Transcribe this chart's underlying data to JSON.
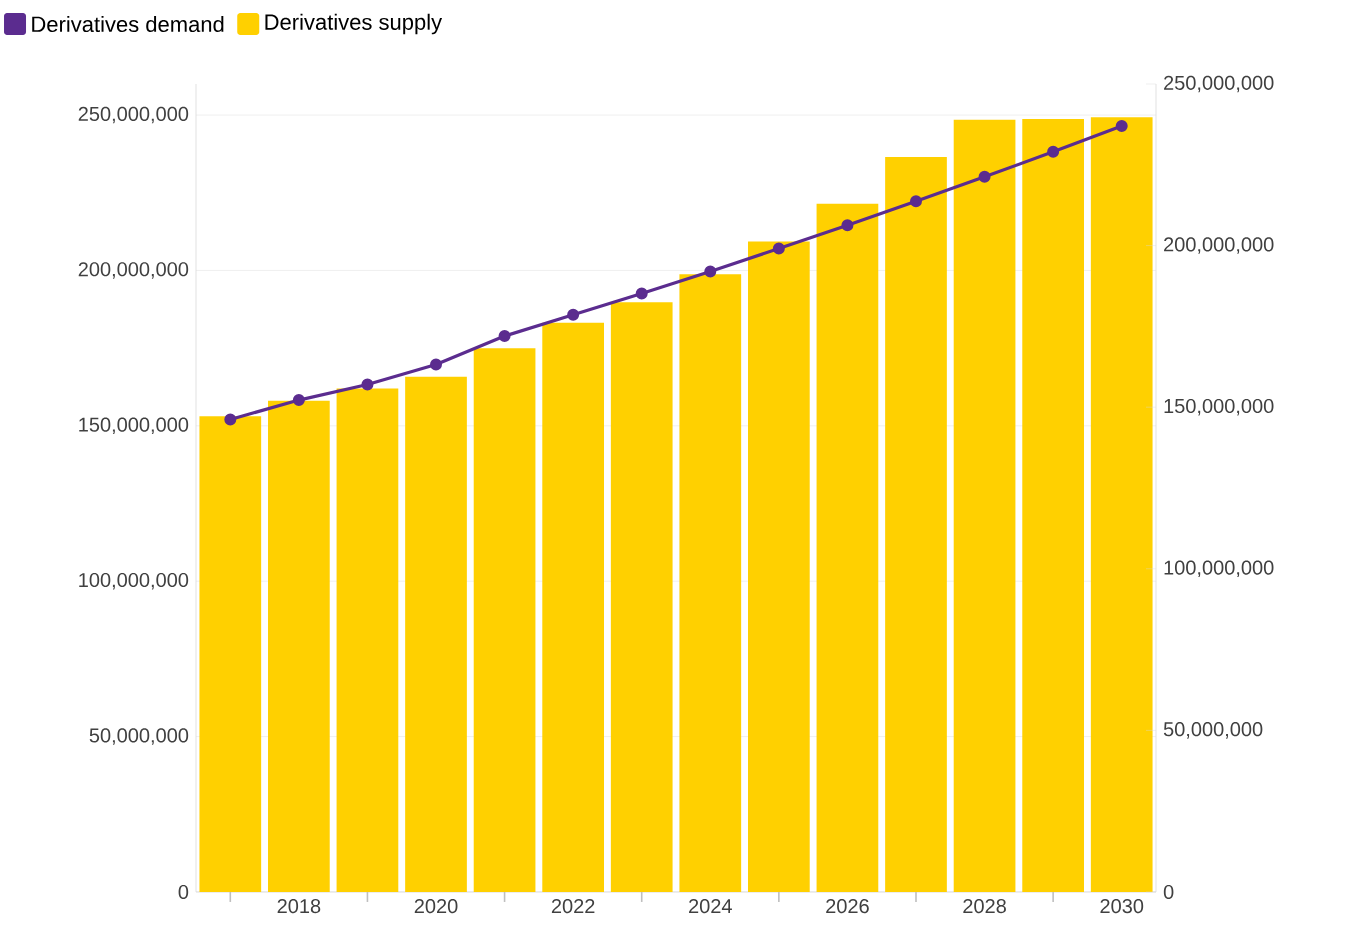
{
  "chart_data": {
    "type": "bar",
    "x": [
      2017,
      2018,
      2019,
      2020,
      2021,
      2022,
      2023,
      2024,
      2025,
      2026,
      2027,
      2028,
      2029,
      2030
    ],
    "series": [
      {
        "name": "Derivatives demand",
        "type": "line",
        "axis": "y2",
        "color": "#5b2c8f",
        "marker": "circle",
        "values": [
          146200000,
          152200000,
          157000000,
          163200000,
          172000000,
          178600000,
          185200000,
          192000000,
          199100000,
          206300000,
          213700000,
          221300000,
          229000000,
          237000000
        ]
      },
      {
        "name": "Derivatives supply",
        "color": "#ffd000",
        "values": [
          153100000,
          158100000,
          162000000,
          165800000,
          175000000,
          183200000,
          189800000,
          198800000,
          209300000,
          221500000,
          236500000,
          248500000,
          248700000,
          249300000
        ]
      }
    ],
    "xlim": [
      2016.5,
      2030.5
    ],
    "xticks": [
      {
        "value": 2017,
        "label": null
      },
      2018,
      {
        "value": 2019,
        "label": null
      },
      2020,
      {
        "value": 2021,
        "label": null
      },
      2022,
      {
        "value": 2023,
        "label": null
      },
      2024,
      {
        "value": 2025,
        "label": null
      },
      2026,
      {
        "value": 2027,
        "label": null
      },
      2028,
      {
        "value": 2029,
        "label": null
      },
      2030
    ],
    "ylim": [
      0,
      260000000
    ],
    "yticks": [
      0,
      {
        "value": 50000000,
        "label": "50,000,000"
      },
      {
        "value": 100000000,
        "label": "100,000,000"
      },
      {
        "value": 150000000,
        "label": "150,000,000"
      },
      {
        "value": 200000000,
        "label": "200,000,000"
      },
      {
        "value": 250000000,
        "label": "250,000,000"
      }
    ],
    "y2lim": [
      0,
      250000000
    ],
    "y2ticks": [
      0,
      {
        "value": 50000000,
        "label": "50,000,000"
      },
      {
        "value": 100000000,
        "label": "100,000,000"
      },
      {
        "value": 150000000,
        "label": "150,000,000"
      },
      {
        "value": 200000000,
        "label": "200,000,000"
      },
      {
        "value": 250000000,
        "label": "250,000,000"
      }
    ],
    "grid": "y",
    "legend": "top left"
  }
}
